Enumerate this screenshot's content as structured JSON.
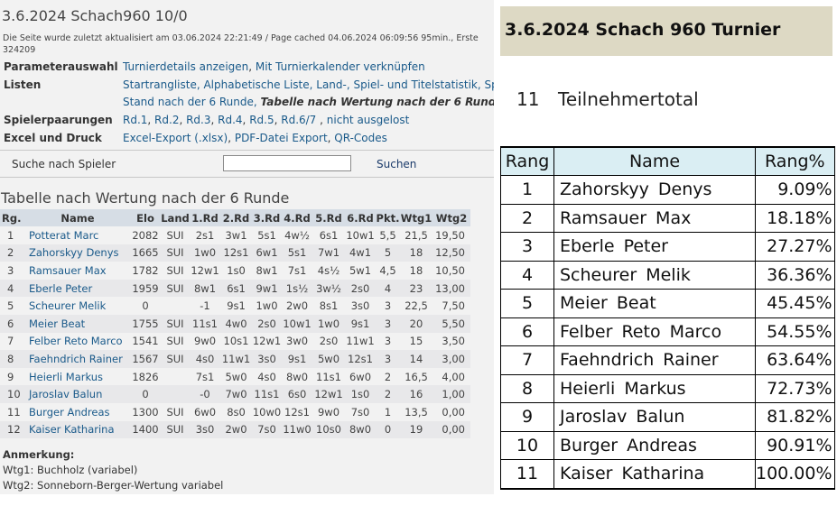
{
  "left": {
    "title": "3.6.2024 Schach960 10/0",
    "updated_line1": "Die Seite wurde zuletzt aktualisiert am 03.06.2024 22:21:49 / Page cached 04.06.2024 06:09:56 95min., Erste",
    "updated_line2": "324209",
    "params": {
      "label": "Parameterauswahl",
      "link1": "Turnierdetails anzeigen",
      "sep": ",",
      "link2": "Mit Turnierkalender verknüpfen"
    },
    "lists": {
      "label": "Listen",
      "line1": "Startrangliste, Alphabetische Liste, Land-, Spiel- und Titelstatistik, Spielt",
      "line2_prefix": "Stand nach der 6 Runde,",
      "line2_current": "Tabelle nach Wertung nach der 6 Runde",
      "line2_suffix": ", T"
    },
    "pairings": {
      "label": "Spielerpaarungen",
      "rounds": [
        "Rd.1",
        "Rd.2",
        "Rd.3",
        "Rd.4",
        "Rd.5",
        "Rd.6/7"
      ],
      "extra": "nicht ausgelost"
    },
    "export": {
      "label": "Excel und Druck",
      "excel": "Excel-Export (.xlsx)",
      "pdf": "PDF-Datei Export",
      "qr": "QR-Codes"
    },
    "search": {
      "label": "Suche nach Spieler",
      "value": "",
      "button": "Suchen"
    },
    "table_heading": "Tabelle nach Wertung nach der 6 Runde",
    "columns": [
      "Rg.",
      "Name",
      "Elo",
      "Land",
      "1.Rd",
      "2.Rd",
      "3.Rd",
      "4.Rd",
      "5.Rd",
      "6.Rd",
      "Pkt.",
      "Wtg1",
      "Wtg2"
    ],
    "rows": [
      [
        "1",
        "Potterat Marc",
        "2082",
        "SUI",
        "2s1",
        "3w1",
        "5s1",
        "4w½",
        "6s1",
        "10w1",
        "5,5",
        "21,5",
        "19,50"
      ],
      [
        "2",
        "Zahorskyy Denys",
        "1665",
        "SUI",
        "1w0",
        "12s1",
        "6w1",
        "5s1",
        "7w1",
        "4w1",
        "5",
        "18",
        "12,50"
      ],
      [
        "3",
        "Ramsauer Max",
        "1782",
        "SUI",
        "12w1",
        "1s0",
        "8w1",
        "7s1",
        "4s½",
        "5w1",
        "4,5",
        "18",
        "10,50"
      ],
      [
        "4",
        "Eberle Peter",
        "1959",
        "SUI",
        "8w1",
        "6s1",
        "9w1",
        "1s½",
        "3w½",
        "2s0",
        "4",
        "23",
        "13,00"
      ],
      [
        "5",
        "Scheurer Melik",
        "0",
        "",
        "-1",
        "9s1",
        "1w0",
        "2w0",
        "8s1",
        "3s0",
        "3",
        "22,5",
        "7,50"
      ],
      [
        "6",
        "Meier Beat",
        "1755",
        "SUI",
        "11s1",
        "4w0",
        "2s0",
        "10w1",
        "1w0",
        "9s1",
        "3",
        "20",
        "5,50"
      ],
      [
        "7",
        "Felber Reto Marco",
        "1541",
        "SUI",
        "9w0",
        "10s1",
        "12w1",
        "3w0",
        "2s0",
        "11w1",
        "3",
        "15",
        "3,50"
      ],
      [
        "8",
        "Faehndrich Rainer",
        "1567",
        "SUI",
        "4s0",
        "11w1",
        "3s0",
        "9s1",
        "5w0",
        "12s1",
        "3",
        "14",
        "3,00"
      ],
      [
        "9",
        "Heierli Markus",
        "1826",
        "",
        "7s1",
        "5w0",
        "4s0",
        "8w0",
        "11s1",
        "6w0",
        "2",
        "16,5",
        "4,00"
      ],
      [
        "10",
        "Jaroslav Balun",
        "0",
        "",
        "-0",
        "7w0",
        "11s1",
        "6s0",
        "12w1",
        "1s0",
        "2",
        "16",
        "1,00"
      ],
      [
        "11",
        "Burger Andreas",
        "1300",
        "SUI",
        "6w0",
        "8s0",
        "10w0",
        "12s1",
        "9w0",
        "7s0",
        "1",
        "13,5",
        "0,00"
      ],
      [
        "12",
        "Kaiser Katharina",
        "1400",
        "SUI",
        "3s0",
        "2w0",
        "7s0",
        "11w0",
        "10s0",
        "8w0",
        "0",
        "19",
        "0,00"
      ]
    ],
    "notes": {
      "heading": "Anmerkung:",
      "wtg1": "Wtg1: Buchholz (variabel)",
      "wtg2": "Wtg2: Sonneborn-Berger-Wertung variabel"
    }
  },
  "right": {
    "title": "3.6.2024 Schach 960 Turnier",
    "total_count": "11",
    "total_label": "Teilnehmertotal",
    "columns": [
      "Rang",
      "Name",
      "Rang%"
    ],
    "rows": [
      [
        "1",
        "Zahorskyy Denys",
        "9.09%"
      ],
      [
        "2",
        "Ramsauer Max",
        "18.18%"
      ],
      [
        "3",
        "Eberle Peter",
        "27.27%"
      ],
      [
        "4",
        "Scheurer Melik",
        "36.36%"
      ],
      [
        "5",
        "Meier Beat",
        "45.45%"
      ],
      [
        "6",
        "Felber Reto Marco",
        "54.55%"
      ],
      [
        "7",
        "Faehndrich Rainer",
        "63.64%"
      ],
      [
        "8",
        "Heierli Markus",
        "72.73%"
      ],
      [
        "9",
        "Jaroslav Balun",
        "81.82%"
      ],
      [
        "10",
        "Burger Andreas",
        "90.91%"
      ],
      [
        "11",
        "Kaiser Katharina",
        "100.00%"
      ]
    ]
  }
}
